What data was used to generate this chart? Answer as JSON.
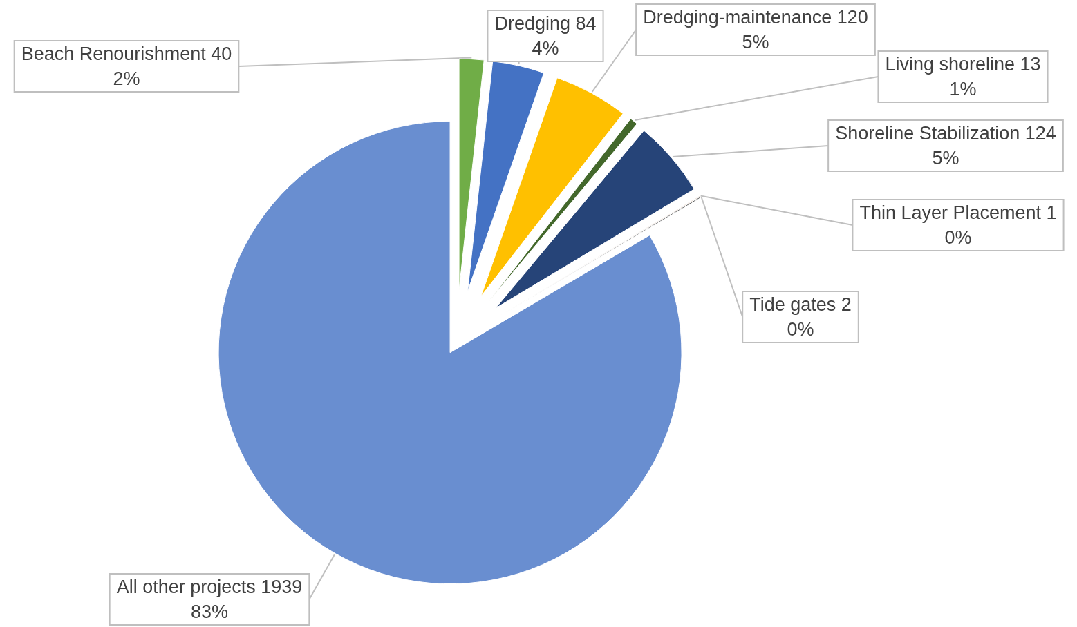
{
  "chart_data": {
    "type": "pie",
    "categories": [
      "Beach Renourishment",
      "Dredging",
      "Dredging-maintenance",
      "Living shoreline",
      "Shoreline Stabilization",
      "Thin Layer Placement",
      "Tide gates",
      "All other projects"
    ],
    "values": [
      40,
      84,
      120,
      13,
      124,
      1,
      2,
      1939
    ],
    "value_labels": [
      "40\n2%",
      "84\n4%",
      "120\n5%",
      "13\n1%",
      "124\n5%",
      "1\n0%",
      "2\n0%",
      "1939\n83%"
    ],
    "colors": [
      "#70ad47",
      "#4472c4",
      "#ffc000",
      "#43682b",
      "#264478",
      "#9e480e",
      "#636363",
      "#698ed0"
    ]
  }
}
